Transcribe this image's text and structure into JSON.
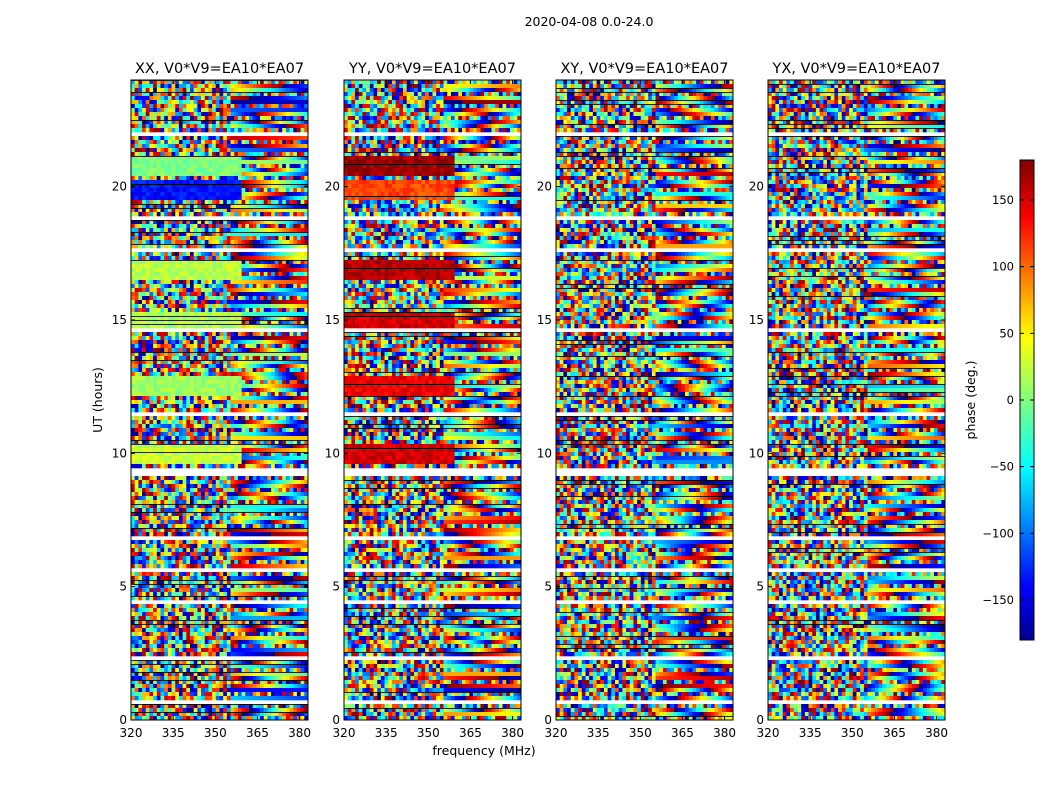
{
  "chart_data": {
    "type": "heatmap",
    "suptitle": "2020-04-08 0.0-24.0",
    "xlabel": "frequency (MHz)",
    "ylabel": "UT (hours)",
    "xlim": [
      320,
      383
    ],
    "ylim": [
      0,
      24
    ],
    "xticks": [
      320,
      335,
      350,
      365,
      380
    ],
    "yticks": [
      0,
      5,
      10,
      15,
      20
    ],
    "panels": [
      {
        "title": "XX, V0*V9=EA10*EA07",
        "pol": "XX"
      },
      {
        "title": "YY, V0*V9=EA10*EA07",
        "pol": "YY"
      },
      {
        "title": "XY, V0*V9=EA10*EA07",
        "pol": "XY"
      },
      {
        "title": "YX, V0*V9=EA10*EA07",
        "pol": "YX"
      }
    ],
    "colorbar": {
      "label": "phase (deg.)",
      "range": [
        -180,
        180
      ],
      "ticks": [
        -150,
        -100,
        -50,
        0,
        50,
        100,
        150
      ],
      "tick_labels": [
        "−150",
        "−100",
        "−50",
        "0",
        "50",
        "100",
        "150"
      ],
      "colormap": "jet"
    },
    "flagged_blocks_hours": [
      [
        0.55,
        0.7
      ],
      [
        2.3,
        2.45
      ],
      [
        4.35,
        4.5
      ],
      [
        5.55,
        5.7
      ],
      [
        6.75,
        6.9
      ],
      [
        9.2,
        9.45
      ],
      [
        11.35,
        11.5
      ],
      [
        14.55,
        14.7
      ],
      [
        17.6,
        17.7
      ],
      [
        18.75,
        18.9
      ],
      [
        21.9,
        22.0
      ]
    ],
    "coherent_bands_hours": [
      {
        "h": 20.8,
        "xx": 0,
        "yy": 170
      },
      {
        "h": 19.9,
        "xx": -130,
        "yy": 110
      },
      {
        "h": 16.9,
        "xx": 20,
        "yy": 160
      },
      {
        "h": 14.9,
        "xx": 15,
        "yy": 150
      },
      {
        "h": 12.5,
        "xx": 10,
        "yy": 140
      },
      {
        "h": 10.0,
        "xx": 25,
        "yy": 150
      }
    ]
  }
}
